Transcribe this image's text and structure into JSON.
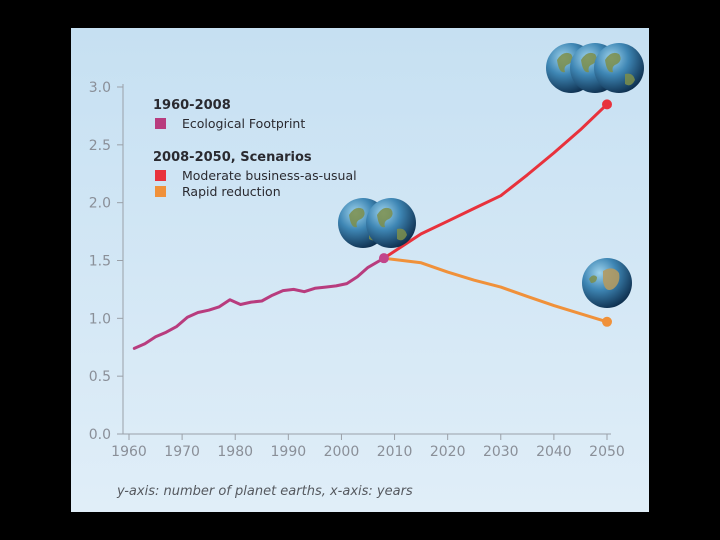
{
  "chart_data": {
    "type": "line",
    "title": "",
    "xlabel": "",
    "ylabel": "",
    "caption": "y-axis: number of planet earths, x-axis: years",
    "xlim": [
      1960,
      2050
    ],
    "ylim": [
      0,
      3.0
    ],
    "x_ticks": [
      "1960",
      "1970",
      "1980",
      "1990",
      "2000",
      "2010",
      "2020",
      "2030",
      "2040",
      "2050"
    ],
    "y_ticks": [
      "0.0",
      "0.5",
      "1.0",
      "1.5",
      "2.0",
      "2.5",
      "3.0"
    ],
    "legend": {
      "position": "top-left",
      "groups": [
        {
          "heading": "1960-2008",
          "entries": [
            "Ecological Footprint"
          ]
        },
        {
          "heading": "2008-2050, Scenarios",
          "entries": [
            "Moderate business-as-usual",
            "Rapid reduction"
          ]
        }
      ]
    },
    "series": [
      {
        "name": "Ecological Footprint",
        "color": "#b83c7e",
        "x": [
          1961,
          1963,
          1965,
          1967,
          1969,
          1971,
          1973,
          1975,
          1977,
          1979,
          1981,
          1983,
          1985,
          1987,
          1989,
          1991,
          1993,
          1995,
          1997,
          1999,
          2001,
          2003,
          2005,
          2008
        ],
        "y": [
          0.74,
          0.78,
          0.84,
          0.88,
          0.93,
          1.01,
          1.05,
          1.07,
          1.1,
          1.16,
          1.12,
          1.14,
          1.15,
          1.2,
          1.24,
          1.25,
          1.23,
          1.26,
          1.27,
          1.28,
          1.3,
          1.36,
          1.44,
          1.52
        ]
      },
      {
        "name": "Moderate business-as-usual",
        "color": "#e8323c",
        "x": [
          2008,
          2015,
          2020,
          2025,
          2030,
          2035,
          2040,
          2045,
          2050
        ],
        "y": [
          1.52,
          1.73,
          1.84,
          1.95,
          2.06,
          2.24,
          2.43,
          2.63,
          2.85
        ]
      },
      {
        "name": "Rapid reduction",
        "color": "#f0913a",
        "x": [
          2008,
          2015,
          2020,
          2025,
          2030,
          2035,
          2040,
          2045,
          2050
        ],
        "y": [
          1.52,
          1.48,
          1.4,
          1.33,
          1.27,
          1.19,
          1.11,
          1.04,
          0.97
        ]
      }
    ],
    "marker_colors": {
      "footprint_end": "#c2458a",
      "bau_end": "#e8323c",
      "reduction_end": "#f0913a",
      "axis": "#9aa0a8"
    }
  },
  "illustrations": [
    {
      "icon": "earth-globe-icon",
      "count": 2,
      "near": "2008"
    },
    {
      "icon": "earth-globe-icon",
      "count": 3,
      "near": "2050 business-as-usual"
    },
    {
      "icon": "earth-globe-icon",
      "count": 1,
      "near": "2050 rapid reduction"
    }
  ]
}
